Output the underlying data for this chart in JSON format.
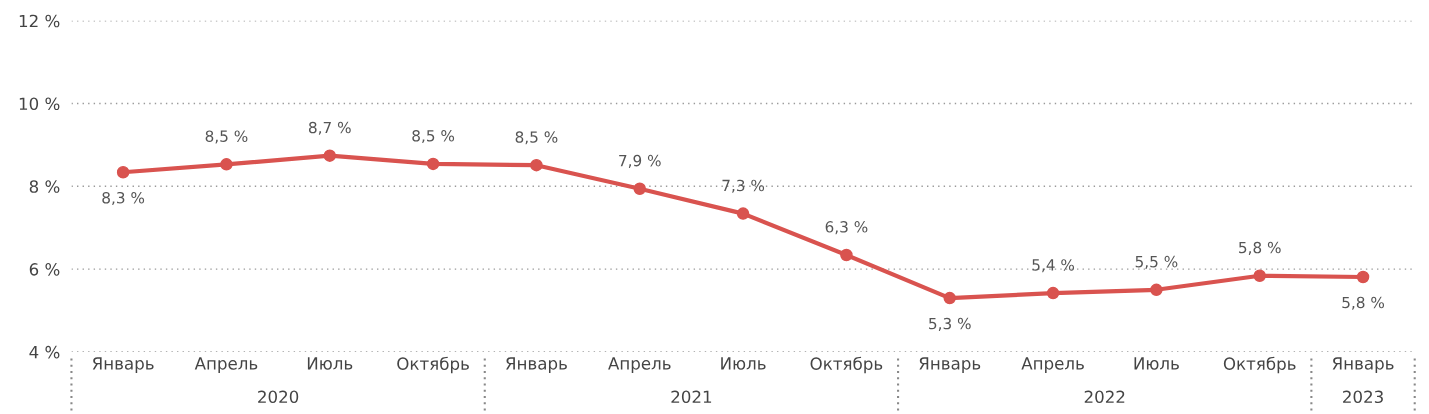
{
  "chart_data": {
    "type": "line",
    "categories": [
      "Январь",
      "Апрель",
      "Июль",
      "Октябрь",
      "Январь",
      "Апрель",
      "Июль",
      "Октябрь",
      "Январь",
      "Апрель",
      "Июль",
      "Октябрь",
      "Январь"
    ],
    "series": [
      {
        "color": "#d9534f",
        "values": [
          8.34,
          8.53,
          8.74,
          8.54,
          8.51,
          7.94,
          7.34,
          6.34,
          5.3,
          5.42,
          5.5,
          5.84,
          5.81
        ],
        "value_labels": [
          "8,3 %",
          "8,5 %",
          "8,7 %",
          "8,5 %",
          "8,5 %",
          "7,9 %",
          "7,3 %",
          "6,3 %",
          "5,3 %",
          "5,4 %",
          "5,5 %",
          "5,8 %",
          "5,8 %"
        ]
      }
    ],
    "ylim": [
      4,
      12
    ],
    "yticks": [
      {
        "value": 4,
        "label": "4 %"
      },
      {
        "value": 6,
        "label": "6 %"
      },
      {
        "value": 8,
        "label": "8 %"
      },
      {
        "value": 10,
        "label": "10 %"
      },
      {
        "value": 12,
        "label": "12 %"
      }
    ],
    "annotations": [
      "2020",
      "2021",
      "2022",
      "2023"
    ],
    "grid": "y",
    "marker": "circle",
    "line_style": "solid"
  }
}
